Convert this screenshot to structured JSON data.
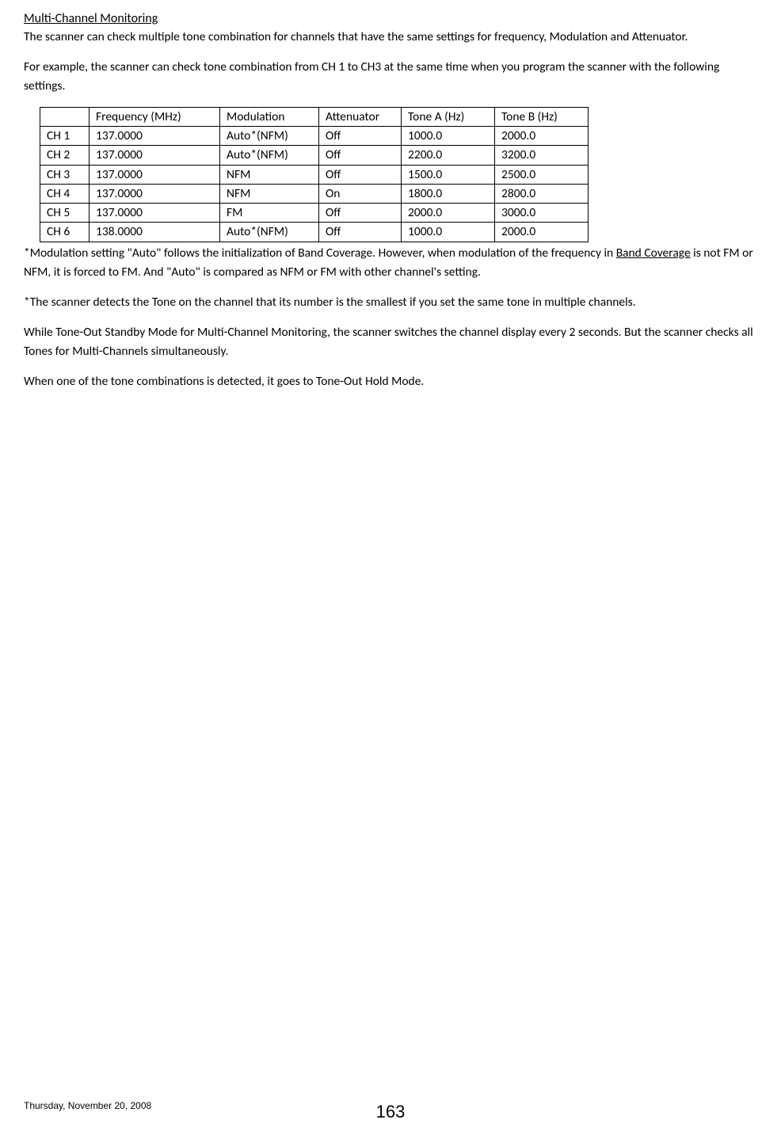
{
  "section_title": "Multi-Channel Monitoring",
  "para1": "The scanner can check multiple tone combination for channels that have the same settings for frequency, Modulation and Attenuator.",
  "para2": "For example, the scanner can check tone combination from CH 1 to CH3 at the same time when you program the scanner with the following settings.",
  "table": {
    "columns": [
      "",
      "Frequency (MHz)",
      "Modulation",
      "Attenuator",
      "Tone A (Hz)",
      "Tone B (Hz)"
    ],
    "rows": [
      [
        "CH 1",
        "137.0000",
        "Auto*(NFM)",
        "Off",
        "1000.0",
        "2000.0"
      ],
      [
        "CH 2",
        "137.0000",
        "Auto*(NFM)",
        "Off",
        "2200.0",
        "3200.0"
      ],
      [
        "CH 3",
        "137.0000",
        "NFM",
        "Off",
        "1500.0",
        "2500.0"
      ],
      [
        "CH 4",
        "137.0000",
        "NFM",
        "On",
        "1800.0",
        "2800.0"
      ],
      [
        "CH 5",
        "137.0000",
        "FM",
        "Off",
        "2000.0",
        "3000.0"
      ],
      [
        "CH 6",
        "138.0000",
        "Auto*(NFM)",
        "Off",
        "1000.0",
        "2000.0"
      ]
    ]
  },
  "para3_part1": "*Modulation setting \"Auto\" follows the initialization of Band Coverage. However, when modulation of the frequency in ",
  "para3_underline": "Band Coverage",
  "para3_part2": " is not FM or NFM, it is forced to FM. And \"Auto\" is compared as NFM or FM with other channel's setting.",
  "para4": "*The scanner detects the Tone on the channel that its number is the smallest if you set the same tone in multiple channels.",
  "para5": "While Tone-Out Standby Mode for Multi-Channel Monitoring, the scanner switches the channel display every 2 seconds. But the scanner checks all Tones for Multi-Channels simultaneously.",
  "para6": "When one of the tone combinations is detected, it goes to Tone-Out Hold Mode.",
  "footer": {
    "date": "Thursday, November 20, 2008",
    "page": "163"
  }
}
